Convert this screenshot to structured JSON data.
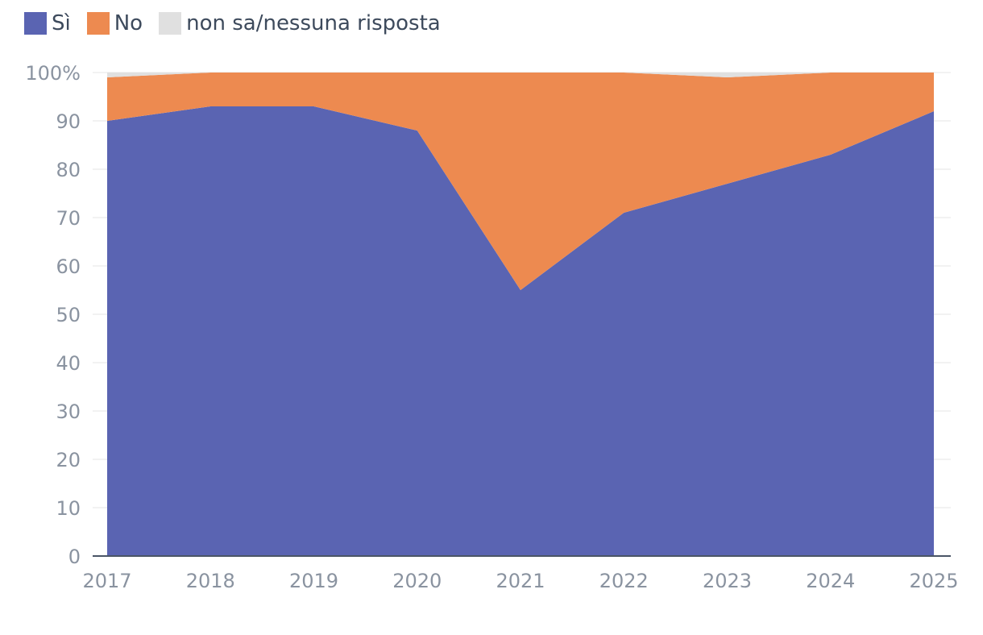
{
  "legend": [
    {
      "label": "Sì",
      "color": "#5a64b2"
    },
    {
      "label": "No",
      "color": "#ed8a50"
    },
    {
      "label": "non sa/nessuna risposta",
      "color": "#e0e0e0"
    }
  ],
  "chart_data": {
    "type": "area",
    "stacked": true,
    "x": [
      "2017",
      "2018",
      "2019",
      "2020",
      "2021",
      "2022",
      "2023",
      "2024",
      "2025"
    ],
    "series": [
      {
        "name": "Sì",
        "color": "#5a64b2",
        "values": [
          90,
          93,
          93,
          88,
          55,
          71,
          77,
          83,
          92
        ]
      },
      {
        "name": "No",
        "color": "#ed8a50",
        "values": [
          9,
          7,
          7,
          12,
          45,
          29,
          22,
          17,
          8
        ]
      },
      {
        "name": "non sa/nessuna risposta",
        "color": "#e0e0e0",
        "values": [
          1,
          0,
          0,
          0,
          0,
          0,
          1,
          0,
          0
        ]
      }
    ],
    "ylim": [
      0,
      100
    ],
    "yticks": [
      "0",
      "10",
      "20",
      "30",
      "40",
      "50",
      "60",
      "70",
      "80",
      "90",
      "100%"
    ],
    "grid": true,
    "legend_position": "top-left"
  }
}
